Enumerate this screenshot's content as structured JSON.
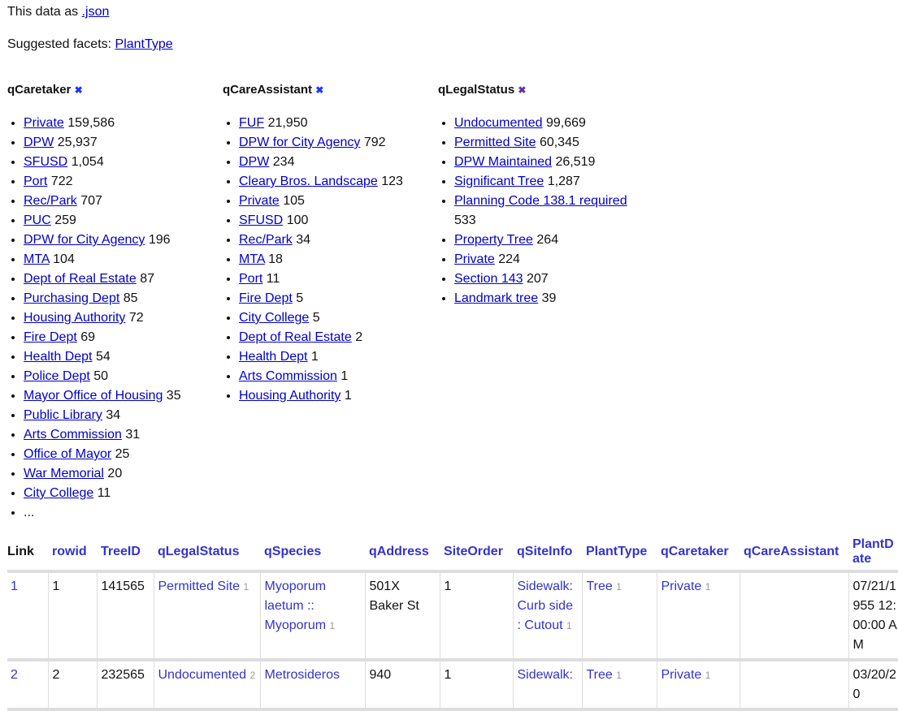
{
  "header": {
    "json_prefix": "This data as ",
    "json_link": ".json",
    "suggested_prefix": "Suggested facets: ",
    "suggested": [
      "PlantType"
    ]
  },
  "facets": [
    {
      "name": "qCaretaker",
      "remove_icon": "close-icon",
      "items": [
        [
          "Private",
          "159,586"
        ],
        [
          "DPW",
          "25,937"
        ],
        [
          "SFUSD",
          "1,054"
        ],
        [
          "Port",
          "722"
        ],
        [
          "Rec/Park",
          "707"
        ],
        [
          "PUC",
          "259"
        ],
        [
          "DPW for City Agency",
          "196"
        ],
        [
          "MTA",
          "104"
        ],
        [
          "Dept of Real Estate",
          "87"
        ],
        [
          "Purchasing Dept",
          "85"
        ],
        [
          "Housing Authority",
          "72"
        ],
        [
          "Fire Dept",
          "69"
        ],
        [
          "Health Dept",
          "54"
        ],
        [
          "Police Dept",
          "50"
        ],
        [
          "Mayor Office of Housing",
          "35"
        ],
        [
          "Public Library",
          "34"
        ],
        [
          "Arts Commission",
          "31"
        ],
        [
          "Office of Mayor",
          "25"
        ],
        [
          "War Memorial",
          "20"
        ],
        [
          "City College",
          "11"
        ]
      ],
      "more": "..."
    },
    {
      "name": "qCareAssistant",
      "remove_icon": "close-icon",
      "items": [
        [
          "FUF",
          "21,950"
        ],
        [
          "DPW for City Agency",
          "792"
        ],
        [
          "DPW",
          "234"
        ],
        [
          "Cleary Bros. Landscape",
          "123"
        ],
        [
          "Private",
          "105"
        ],
        [
          "SFUSD",
          "100"
        ],
        [
          "Rec/Park",
          "34"
        ],
        [
          "MTA",
          "18"
        ],
        [
          "Port",
          "11"
        ],
        [
          "Fire Dept",
          "5"
        ],
        [
          "City College",
          "5"
        ],
        [
          "Dept of Real Estate",
          "2"
        ],
        [
          "Health Dept",
          "1"
        ],
        [
          "Arts Commission",
          "1"
        ],
        [
          "Housing Authority",
          "1"
        ]
      ]
    },
    {
      "name": "qLegalStatus",
      "remove_icon": "close-icon",
      "items": [
        [
          "Undocumented",
          "99,669"
        ],
        [
          "Permitted Site",
          "60,345"
        ],
        [
          "DPW Maintained",
          "26,519"
        ],
        [
          "Significant Tree",
          "1,287"
        ],
        [
          "Planning Code 138.1 required",
          "533"
        ],
        [
          "Property Tree",
          "264"
        ],
        [
          "Private",
          "224"
        ],
        [
          "Section 143",
          "207"
        ],
        [
          "Landmark tree",
          "39"
        ]
      ]
    }
  ],
  "table": {
    "columns": [
      "Link",
      "rowid",
      "TreeID",
      "qLegalStatus",
      "qSpecies",
      "qAddress",
      "SiteOrder",
      "qSiteInfo",
      "PlantType",
      "qCaretaker",
      "qCareAssistant",
      "PlantDate"
    ],
    "rows": [
      {
        "link": "1",
        "rowid": "1",
        "treeid": "141565",
        "legal": "Permitted Site",
        "legal_n": "1",
        "species": "Myoporum laetum :: Myoporum",
        "species_n": "1",
        "address": "501X Baker St",
        "siteorder": "1",
        "siteinfo": "Sidewalk: Curb side : Cutout",
        "siteinfo_n": "1",
        "planttype": "Tree",
        "planttype_n": "1",
        "caretaker": "Private",
        "caretaker_n": "1",
        "assistant": "",
        "plantdate": "07/21/1955 12:00:00 AM"
      },
      {
        "link": "2",
        "rowid": "2",
        "treeid": "232565",
        "legal": "Undocumented",
        "legal_n": "2",
        "species": "Metrosideros",
        "species_n": "",
        "address": "940",
        "siteorder": "1",
        "siteinfo": "Sidewalk:",
        "siteinfo_n": "",
        "planttype": "Tree",
        "planttype_n": "1",
        "caretaker": "Private",
        "caretaker_n": "1",
        "assistant": "",
        "plantdate": "03/20/20"
      }
    ]
  },
  "colors": {
    "link": "#0000cc",
    "table_link": "#3333cc",
    "count": "#999999"
  }
}
